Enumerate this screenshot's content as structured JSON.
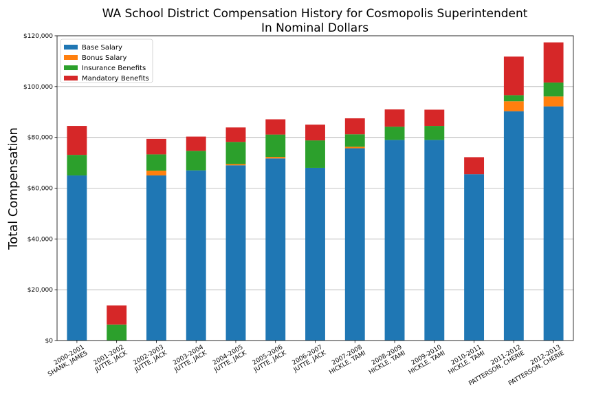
{
  "chart_data": {
    "type": "bar",
    "stacked": true,
    "title": "WA School District Compensation History for Cosmopolis Superintendent",
    "subtitle": "In Nominal Dollars",
    "xlabel": "",
    "ylabel": "Total Compensation",
    "ylim": [
      0,
      120000
    ],
    "yticks": [
      {
        "value": 0,
        "label": "$0"
      },
      {
        "value": 20000,
        "label": "$20,000"
      },
      {
        "value": 40000,
        "label": "$40,000"
      },
      {
        "value": 60000,
        "label": "$60,000"
      },
      {
        "value": 80000,
        "label": "$80,000"
      },
      {
        "value": 100000,
        "label": "$100,000"
      },
      {
        "value": 120000,
        "label": "$120,000"
      }
    ],
    "grid": "horizontal",
    "legend_position": "top-left",
    "categories": [
      [
        "2000-2001",
        "SHANK, JAMES"
      ],
      [
        "2001-2002",
        "JUTTE, JACK"
      ],
      [
        "2002-2003",
        "JUTTE, JACK"
      ],
      [
        "2003-2004",
        "JUTTE, JACK"
      ],
      [
        "2004-2005",
        "JUTTE, JACK"
      ],
      [
        "2005-2006",
        "JUTTE, JACK"
      ],
      [
        "2006-2007",
        "JUTTE, JACK"
      ],
      [
        "2007-2008",
        "HICKLE, TAMI"
      ],
      [
        "2008-2009",
        "HICKLE, TAMI"
      ],
      [
        "2009-2010",
        "HICKLE, TAMI"
      ],
      [
        "2010-2011",
        "HICKLE, TAMI"
      ],
      [
        "2011-2012",
        "PATTERSON, CHERIE"
      ],
      [
        "2012-2013",
        "PATTERSON, CHERIE"
      ]
    ],
    "series": [
      {
        "name": "Base Salary",
        "color": "#1f77b4",
        "values": [
          65000,
          0,
          65000,
          67000,
          69000,
          71700,
          68000,
          75700,
          79000,
          79000,
          65500,
          90300,
          92200
        ]
      },
      {
        "name": "Bonus Salary",
        "color": "#ff7f0e",
        "values": [
          0,
          0,
          1900,
          0,
          500,
          600,
          0,
          600,
          0,
          0,
          0,
          3900,
          3900
        ]
      },
      {
        "name": "Insurance Benefits",
        "color": "#2ca02c",
        "values": [
          8100,
          6300,
          6400,
          7700,
          8700,
          8800,
          10800,
          4900,
          5200,
          5500,
          0,
          2400,
          5500
        ]
      },
      {
        "name": "Mandatory Benefits",
        "color": "#d62728",
        "values": [
          11400,
          7500,
          6100,
          5600,
          5700,
          6000,
          6200,
          6300,
          6800,
          6400,
          6700,
          15200,
          15800
        ]
      }
    ]
  }
}
